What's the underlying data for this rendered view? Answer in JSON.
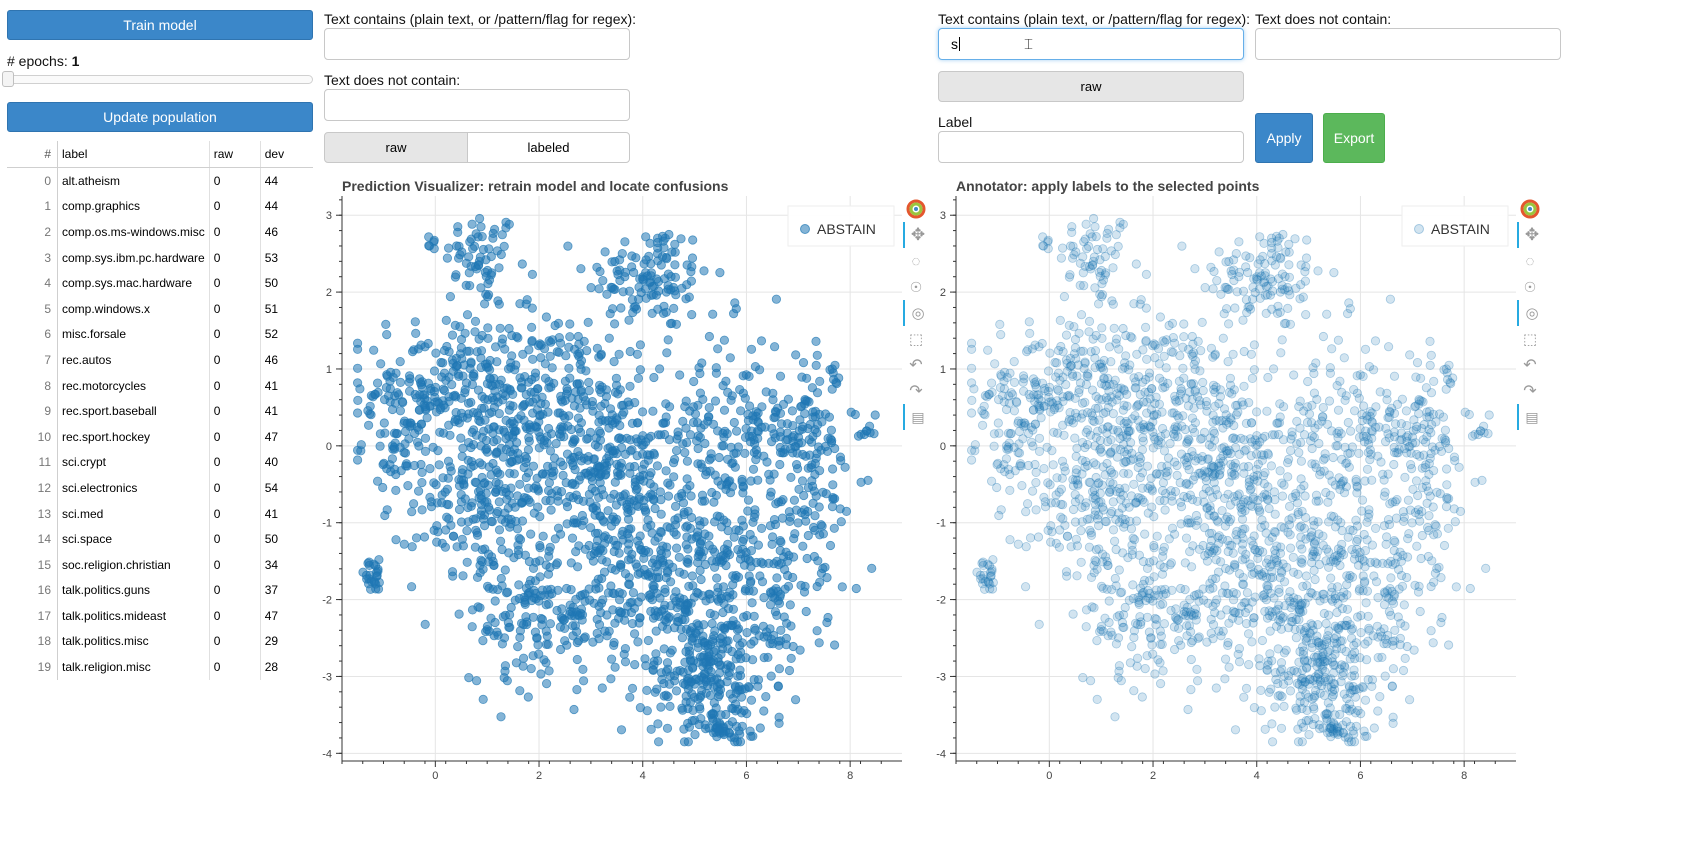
{
  "left": {
    "train_button": "Train model",
    "epochs_label": "# epochs: ",
    "epochs_value": "1",
    "epochs_fraction": 0,
    "update_button": "Update population",
    "table": {
      "headers": {
        "idx": "#",
        "label": "label",
        "raw": "raw",
        "dev": "dev"
      },
      "rows": [
        {
          "idx": "0",
          "label": "alt.atheism",
          "raw": "0",
          "dev": "44"
        },
        {
          "idx": "1",
          "label": "comp.graphics",
          "raw": "0",
          "dev": "44"
        },
        {
          "idx": "2",
          "label": "comp.os.ms-windows.misc",
          "raw": "0",
          "dev": "46"
        },
        {
          "idx": "3",
          "label": "comp.sys.ibm.pc.hardware",
          "raw": "0",
          "dev": "53"
        },
        {
          "idx": "4",
          "label": "comp.sys.mac.hardware",
          "raw": "0",
          "dev": "50"
        },
        {
          "idx": "5",
          "label": "comp.windows.x",
          "raw": "0",
          "dev": "51"
        },
        {
          "idx": "6",
          "label": "misc.forsale",
          "raw": "0",
          "dev": "52"
        },
        {
          "idx": "7",
          "label": "rec.autos",
          "raw": "0",
          "dev": "46"
        },
        {
          "idx": "8",
          "label": "rec.motorcycles",
          "raw": "0",
          "dev": "41"
        },
        {
          "idx": "9",
          "label": "rec.sport.baseball",
          "raw": "0",
          "dev": "41"
        },
        {
          "idx": "10",
          "label": "rec.sport.hockey",
          "raw": "0",
          "dev": "47"
        },
        {
          "idx": "11",
          "label": "sci.crypt",
          "raw": "0",
          "dev": "40"
        },
        {
          "idx": "12",
          "label": "sci.electronics",
          "raw": "0",
          "dev": "54"
        },
        {
          "idx": "13",
          "label": "sci.med",
          "raw": "0",
          "dev": "41"
        },
        {
          "idx": "14",
          "label": "sci.space",
          "raw": "0",
          "dev": "50"
        },
        {
          "idx": "15",
          "label": "soc.religion.christian",
          "raw": "0",
          "dev": "34"
        },
        {
          "idx": "16",
          "label": "talk.politics.guns",
          "raw": "0",
          "dev": "37"
        },
        {
          "idx": "17",
          "label": "talk.politics.mideast",
          "raw": "0",
          "dev": "47"
        },
        {
          "idx": "18",
          "label": "talk.politics.misc",
          "raw": "0",
          "dev": "29"
        },
        {
          "idx": "19",
          "label": "talk.religion.misc",
          "raw": "0",
          "dev": "28"
        }
      ]
    }
  },
  "finder": {
    "contains_label": "Text contains (plain text, or /pattern/flag for regex):",
    "contains_value": "",
    "not_contains_label": "Text does not contain:",
    "not_contains_value": "",
    "toggle_raw": "raw",
    "toggle_labeled": "labeled"
  },
  "annotator_controls": {
    "contains_label": "Text contains (plain text, or /pattern/flag for regex):",
    "contains_value": "s",
    "not_contains_label": "Text does not contain:",
    "not_contains_value": "",
    "toggle_raw": "raw",
    "label_label": "Label",
    "label_value": "",
    "apply_button": "Apply",
    "export_button": "Export"
  },
  "colors": {
    "point": "#1f77b4",
    "button_blue": "#3b87c9",
    "button_green": "#5cb85c"
  },
  "chart_data": [
    {
      "type": "scatter",
      "title": "Prediction Visualizer: retrain model and locate confusions",
      "legend": [
        "ABSTAIN"
      ],
      "legend_position": "top-right",
      "point_alpha": 0.55,
      "xlim": [
        -1.8,
        9.0
      ],
      "ylim": [
        -4.1,
        3.25
      ],
      "x_ticks": [
        "0",
        "2",
        "4",
        "6",
        "8"
      ],
      "y_ticks": [
        "3",
        "2",
        "1",
        "0",
        "-1",
        "-2",
        "-3",
        "-4"
      ],
      "clusters": [
        {
          "center": [
            0.9,
            2.45
          ],
          "spread": [
            0.35,
            0.3
          ],
          "count": 60
        },
        {
          "center": [
            -0.05,
            2.65
          ],
          "spread": [
            0.1,
            0.05
          ],
          "count": 6
        },
        {
          "center": [
            4.1,
            2.2
          ],
          "spread": [
            0.6,
            0.35
          ],
          "count": 120
        },
        {
          "center": [
            0.4,
            0.8
          ],
          "spread": [
            0.9,
            0.45
          ],
          "count": 220
        },
        {
          "center": [
            -0.6,
            0.1
          ],
          "spread": [
            0.4,
            0.4
          ],
          "count": 70
        },
        {
          "center": [
            1.0,
            -0.7
          ],
          "spread": [
            0.7,
            0.6
          ],
          "count": 240
        },
        {
          "center": [
            -1.2,
            -1.7
          ],
          "spread": [
            0.15,
            0.1
          ],
          "count": 25
        },
        {
          "center": [
            3.3,
            -0.4
          ],
          "spread": [
            0.7,
            0.7
          ],
          "count": 260
        },
        {
          "center": [
            2.3,
            0.6
          ],
          "spread": [
            0.9,
            0.6
          ],
          "count": 200
        },
        {
          "center": [
            5.6,
            0.1
          ],
          "spread": [
            0.9,
            0.7
          ],
          "count": 240
        },
        {
          "center": [
            7.1,
            0.3
          ],
          "spread": [
            0.4,
            0.4
          ],
          "count": 70
        },
        {
          "center": [
            7.7,
            0.95
          ],
          "spread": [
            0.05,
            0.08
          ],
          "count": 6
        },
        {
          "center": [
            8.4,
            0.2
          ],
          "spread": [
            0.12,
            0.05
          ],
          "count": 8
        },
        {
          "center": [
            2.2,
            -2.2
          ],
          "spread": [
            0.8,
            0.5
          ],
          "count": 200
        },
        {
          "center": [
            4.7,
            -1.7
          ],
          "spread": [
            0.8,
            0.6
          ],
          "count": 280
        },
        {
          "center": [
            5.2,
            -3.0
          ],
          "spread": [
            0.6,
            0.4
          ],
          "count": 220
        },
        {
          "center": [
            6.4,
            -2.0
          ],
          "spread": [
            0.5,
            0.7
          ],
          "count": 130
        },
        {
          "center": [
            5.5,
            -3.7
          ],
          "spread": [
            0.25,
            0.1
          ],
          "count": 30
        },
        {
          "center": [
            7.4,
            -0.8
          ],
          "spread": [
            0.4,
            0.6
          ],
          "count": 70
        }
      ]
    },
    {
      "type": "scatter",
      "title": "Annotator: apply labels to the selected points",
      "legend": [
        "ABSTAIN"
      ],
      "legend_position": "top-right",
      "point_alpha": 0.2,
      "xlim": [
        -1.8,
        9.0
      ],
      "ylim": [
        -4.1,
        3.25
      ],
      "x_ticks": [
        "0",
        "2",
        "4",
        "6",
        "8"
      ],
      "y_ticks": [
        "3",
        "2",
        "1",
        "0",
        "-1",
        "-2",
        "-3",
        "-4"
      ]
    }
  ]
}
